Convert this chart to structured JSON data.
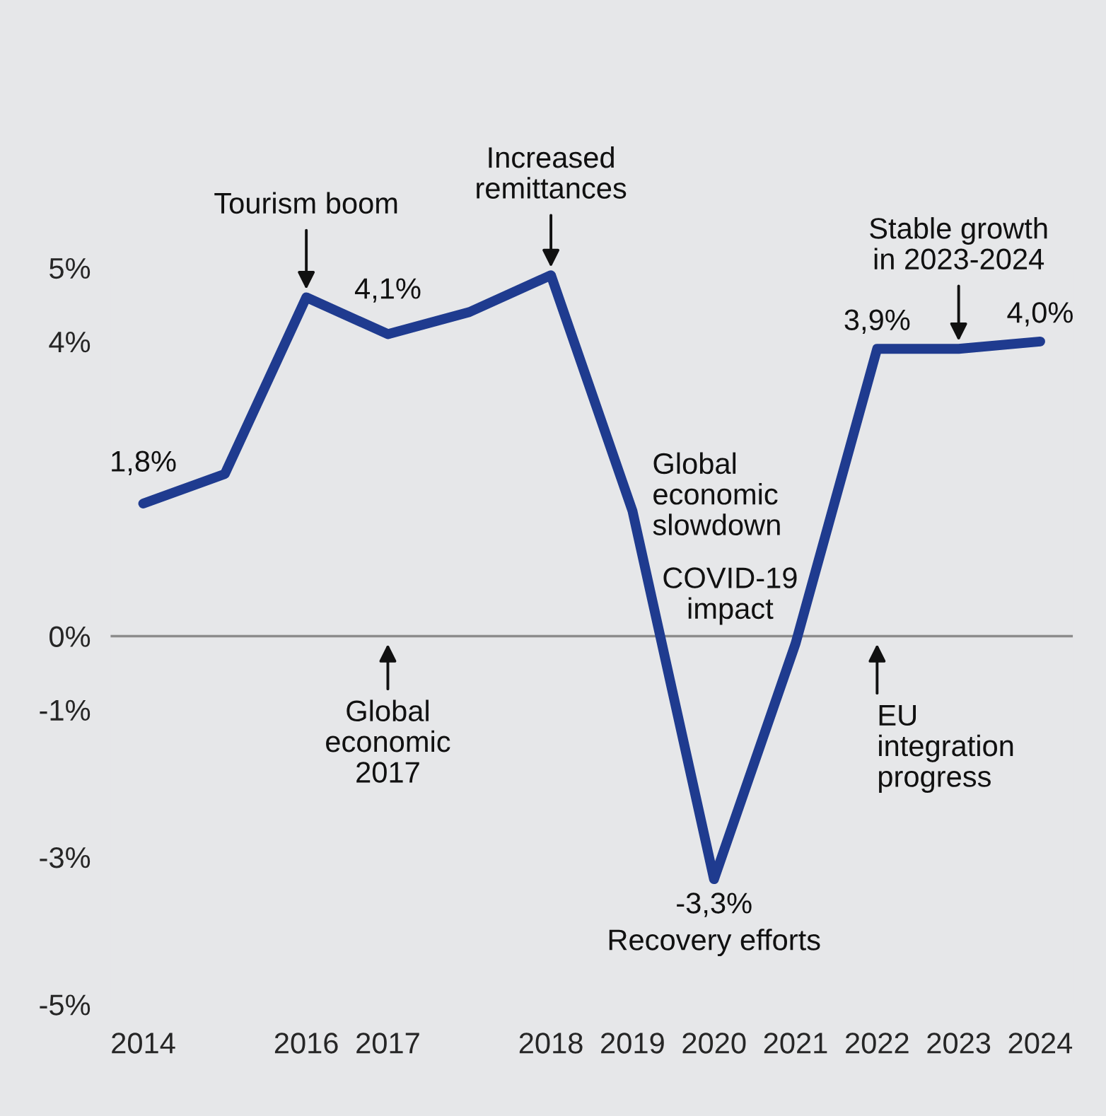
{
  "chart_data": {
    "type": "line",
    "categories": [
      "2014",
      null,
      "2016",
      "2017",
      null,
      "2018",
      "2019",
      "2020",
      "2021",
      "2022",
      "2023",
      "2024"
    ],
    "series": [
      {
        "color": "#1f3b8f",
        "values": [
          1.8,
          2.2,
          4.6,
          4.1,
          4.4,
          4.9,
          1.7,
          -3.3,
          -0.1,
          3.9,
          3.9,
          4.0
        ],
        "value_labels": [
          "1,8%",
          null,
          null,
          "4,1%",
          null,
          null,
          null,
          "-3,3%",
          null,
          "3,9%",
          null,
          "4,0%"
        ]
      }
    ],
    "ylim": [
      -5,
      5
    ],
    "yticks": [
      {
        "value": 5,
        "label": "5%"
      },
      {
        "value": 4,
        "label": "4%"
      },
      {
        "value": 0,
        "label": "0%"
      },
      {
        "value": -3,
        "label": "-3%"
      },
      {
        "value": -1,
        "label": "-1%"
      },
      {
        "value": -5,
        "label": "-5%"
      }
    ],
    "ref_lines": [
      {
        "axis": "y",
        "value": 0,
        "color": "#8c8c8c"
      }
    ],
    "annotations": [
      {
        "text": "Tourism boom",
        "x": "2016",
        "y": 4.6
      },
      {
        "text": "Increased\nremittances",
        "x": "2018",
        "y": 4.9
      },
      {
        "text": "Global\neconomic\nslowdown",
        "x": "2019",
        "y": 1.7
      },
      {
        "text": "Stable growth\nin 2023-2024",
        "x": "2023",
        "y": 3.9
      },
      {
        "text": "Global\neconomic\n2017",
        "x": "2017",
        "y": 0
      },
      {
        "text": "COVID-19\nimpact",
        "x": "2019",
        "y": 0
      },
      {
        "text": "EU\nintegration\nprogress",
        "x": "2022",
        "y": 0
      },
      {
        "text": "Recovery efforts",
        "x": "2020",
        "y": -3.3
      }
    ]
  }
}
